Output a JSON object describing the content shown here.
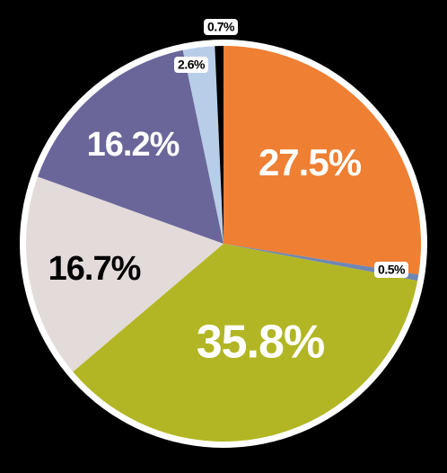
{
  "chart_data": {
    "type": "pie",
    "values": [
      27.5,
      0.5,
      35.8,
      16.7,
      16.2,
      2.6,
      0.7
    ],
    "value_labels": [
      "27.5%",
      "0.5%",
      "35.8%",
      "16.7%",
      "16.2%",
      "2.6%",
      "0.7%"
    ],
    "colors": [
      "#ee7f33",
      "#6f86b3",
      "#b2b624",
      "#e3dbd9",
      "#6b6699",
      "#b8cde8",
      "#000000"
    ]
  }
}
